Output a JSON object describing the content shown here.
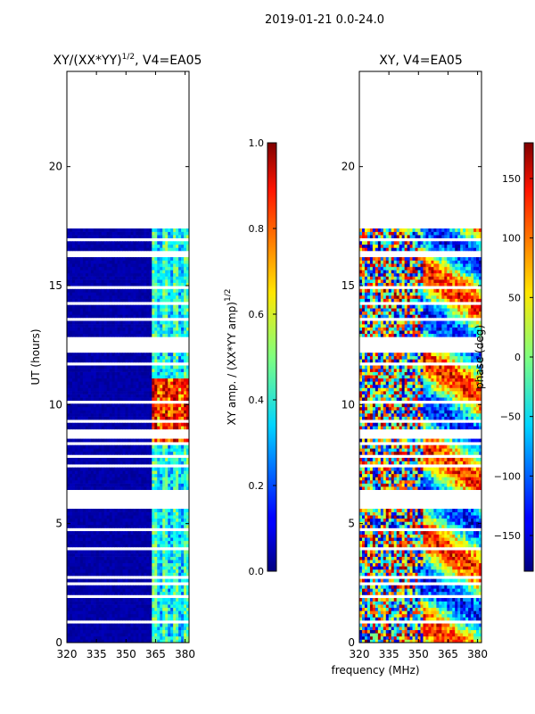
{
  "figure": {
    "suptitle": "2019-01-21 0.0-24.0",
    "shared_xlabel": "frequency (MHz)"
  },
  "chart_data": [
    {
      "type": "heatmap",
      "title_main": "XY/(XX*YY)",
      "title_sup": "1/2",
      "title_tail": ", V4=EA05",
      "ylabel": "UT (hours)",
      "xlim": [
        320,
        382
      ],
      "ylim": [
        0,
        24
      ],
      "xticks": [
        320,
        335,
        350,
        365,
        380
      ],
      "yticks": [
        0,
        5,
        10,
        15,
        20
      ],
      "data_span_hours": [
        0,
        17.4
      ],
      "colorbar": {
        "label_main": "XY amp. / (XX*YY amp)",
        "label_sup": "1/2",
        "range": [
          0.0,
          1.0
        ],
        "ticks": [
          "0.0",
          "0.2",
          "0.4",
          "0.6",
          "0.8",
          "1.0"
        ]
      }
    },
    {
      "type": "heatmap",
      "title": "XY, V4=EA05",
      "ylabel": "",
      "xlim": [
        320,
        382
      ],
      "ylim": [
        0,
        24
      ],
      "xticks": [
        320,
        335,
        350,
        365,
        380
      ],
      "yticks": [
        0,
        5,
        10,
        15,
        20
      ],
      "data_span_hours": [
        0,
        17.4
      ],
      "colorbar": {
        "label": "phase (deg)",
        "range": [
          -180,
          180
        ],
        "ticks": [
          "−150",
          "−100",
          "−50",
          "0",
          "50",
          "100",
          "150"
        ]
      }
    }
  ],
  "colors": {
    "low": "#00007f",
    "mid": "#7fff7f",
    "high": "#7f0000"
  }
}
